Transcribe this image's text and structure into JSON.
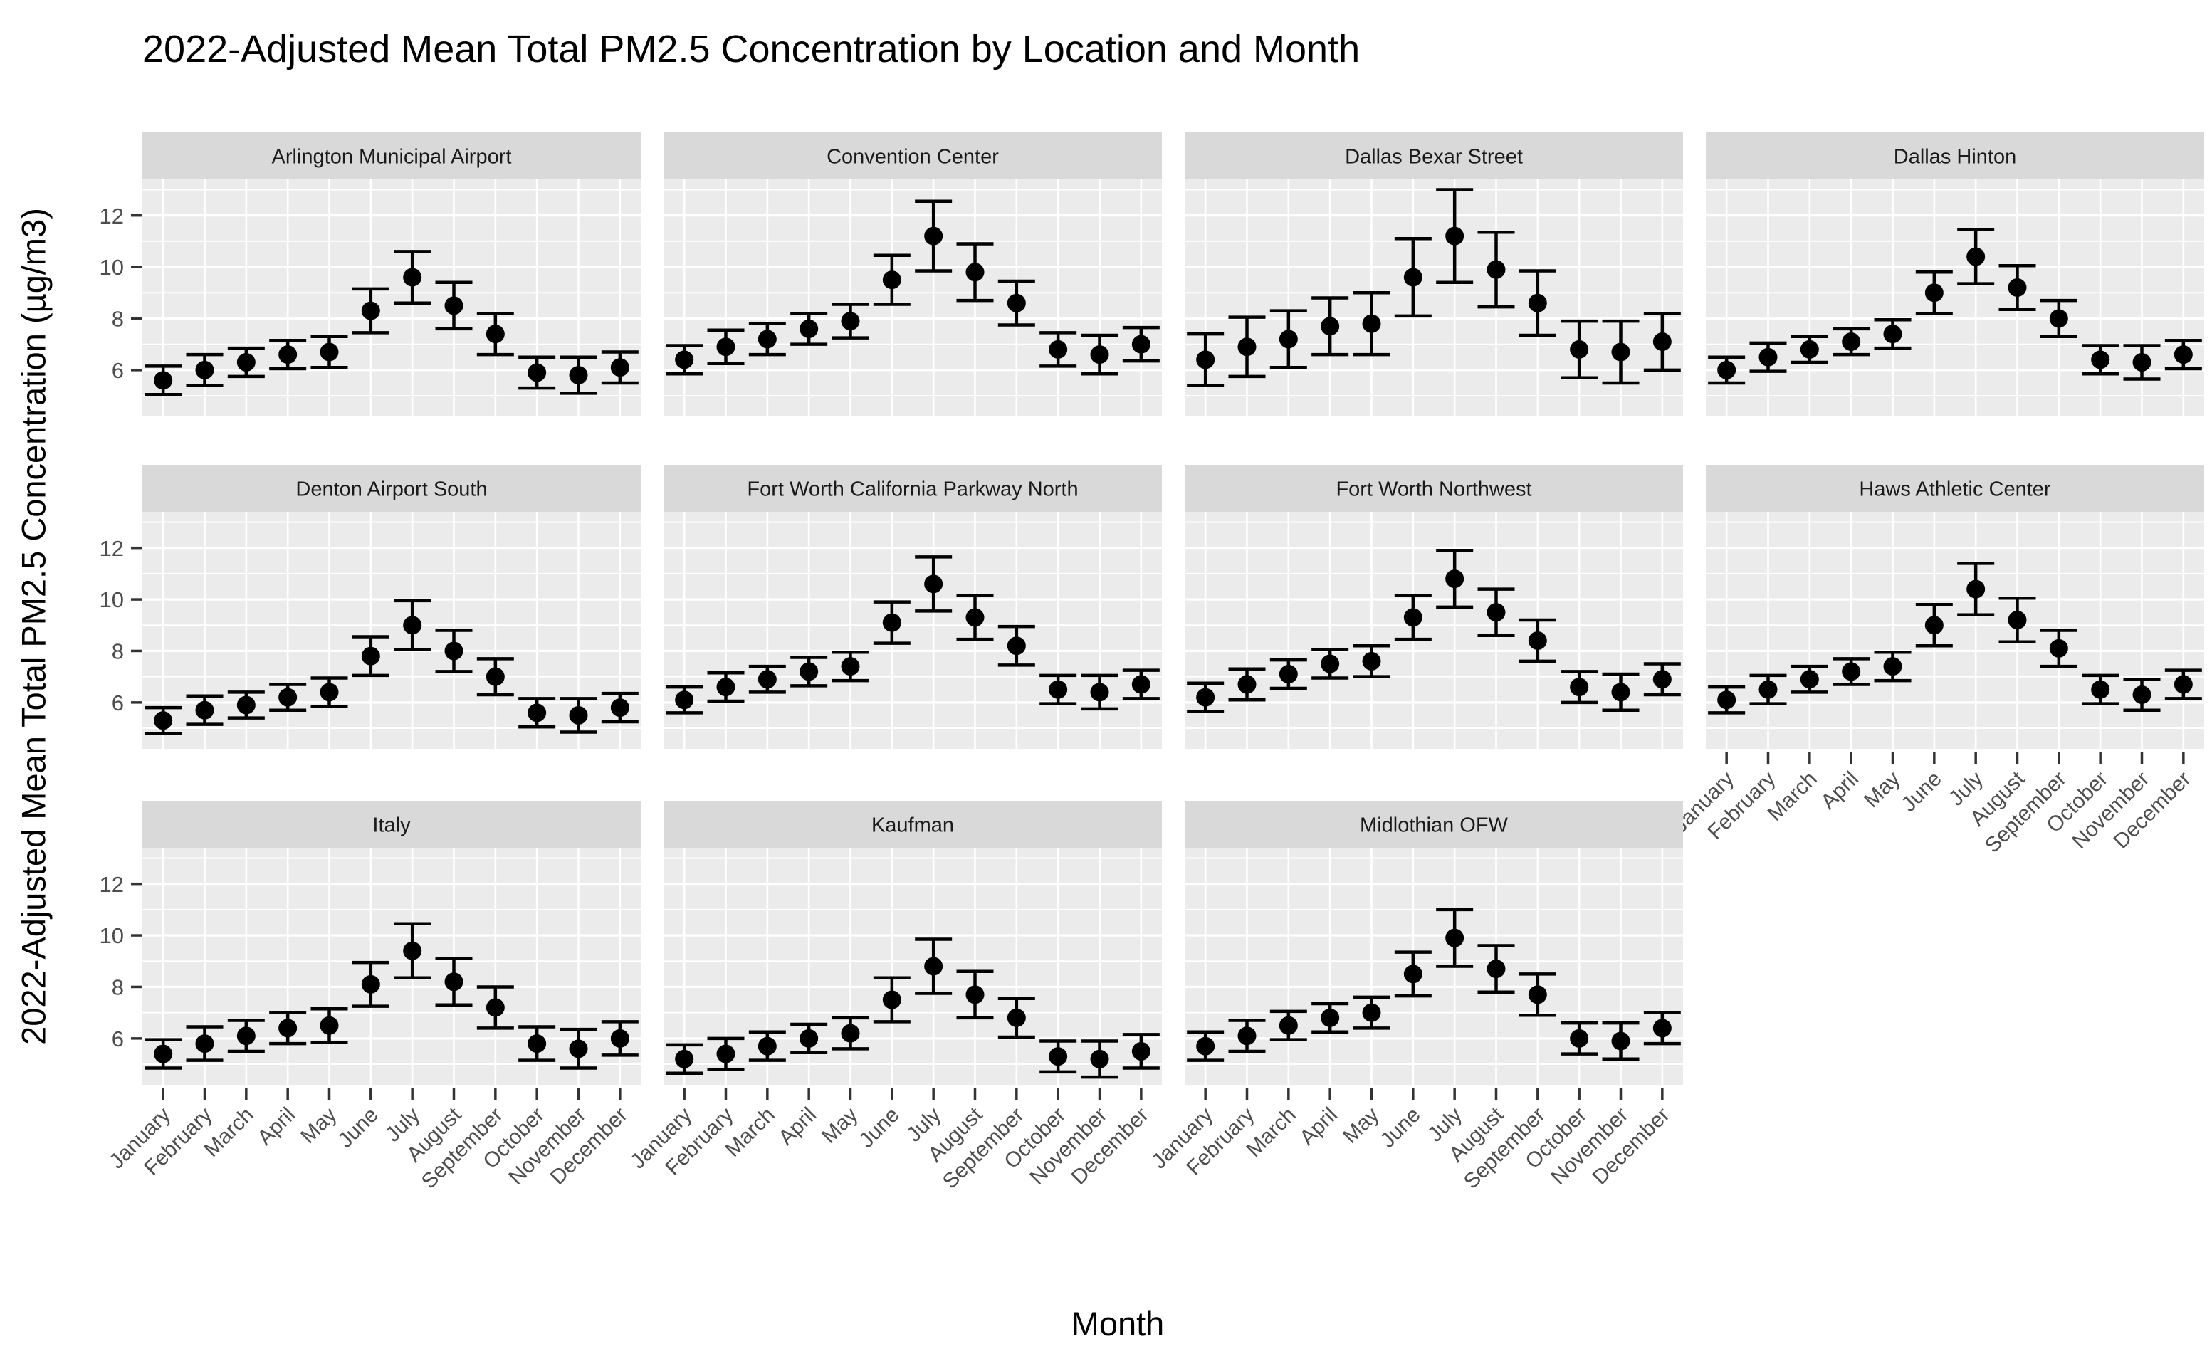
{
  "title": "2022-Adjusted Mean Total PM2.5 Concentration by Location and Month",
  "y_axis_title": "2022-Adjusted Mean Total PM2.5 Concentration (µg/m3)",
  "x_axis_title": "Month",
  "colors": {
    "background": "#FFFFFF",
    "panel_background": "#EBEBEB",
    "strip_background": "#D9D9D9",
    "strip_text": "#1A1A1A",
    "gridline": "#FFFFFF",
    "geom": "#000000",
    "axis_text": "#4D4D4D",
    "tick_mark": "#333333"
  },
  "chart_data": {
    "type": "scatter",
    "subtype": "pointrange-with-errorbars",
    "title": "2022-Adjusted Mean Total PM2.5 Concentration by Location and Month",
    "xlabel": "Month",
    "ylabel": "2022-Adjusted Mean Total PM2.5 Concentration (µg/m3)",
    "categories": [
      "January",
      "February",
      "March",
      "April",
      "May",
      "June",
      "July",
      "August",
      "September",
      "October",
      "November",
      "December"
    ],
    "y_ticks": [
      6,
      8,
      10,
      12
    ],
    "ylim": [
      4.2,
      13.4
    ],
    "grid": "white major/minor gridlines on grey panels",
    "legend": "none",
    "facet_columns": 4,
    "facets": [
      {
        "label": "Arlington Municipal Airport",
        "means": [
          5.6,
          6.0,
          6.3,
          6.6,
          6.7,
          8.3,
          9.6,
          8.5,
          7.4,
          5.9,
          5.8,
          6.1
        ],
        "errors": [
          0.55,
          0.6,
          0.55,
          0.55,
          0.6,
          0.85,
          1.0,
          0.9,
          0.8,
          0.6,
          0.7,
          0.6
        ]
      },
      {
        "label": "Convention Center",
        "means": [
          6.4,
          6.9,
          7.2,
          7.6,
          7.9,
          9.5,
          11.2,
          9.8,
          8.6,
          6.8,
          6.6,
          7.0
        ],
        "errors": [
          0.55,
          0.65,
          0.6,
          0.6,
          0.65,
          0.95,
          1.35,
          1.1,
          0.85,
          0.65,
          0.75,
          0.65
        ]
      },
      {
        "label": "Dallas Bexar Street",
        "means": [
          6.4,
          6.9,
          7.2,
          7.7,
          7.8,
          9.6,
          11.2,
          9.9,
          8.6,
          6.8,
          6.7,
          7.1
        ],
        "errors": [
          1.0,
          1.15,
          1.1,
          1.1,
          1.2,
          1.5,
          1.8,
          1.45,
          1.25,
          1.1,
          1.2,
          1.1
        ]
      },
      {
        "label": "Dallas Hinton",
        "means": [
          6.0,
          6.5,
          6.8,
          7.1,
          7.4,
          9.0,
          10.4,
          9.2,
          8.0,
          6.4,
          6.3,
          6.6
        ],
        "errors": [
          0.5,
          0.55,
          0.5,
          0.5,
          0.55,
          0.8,
          1.05,
          0.85,
          0.7,
          0.55,
          0.65,
          0.55
        ]
      },
      {
        "label": "Denton Airport South",
        "means": [
          5.3,
          5.7,
          5.9,
          6.2,
          6.4,
          7.8,
          9.0,
          8.0,
          7.0,
          5.6,
          5.5,
          5.8
        ],
        "errors": [
          0.5,
          0.55,
          0.5,
          0.5,
          0.55,
          0.75,
          0.95,
          0.8,
          0.7,
          0.55,
          0.65,
          0.55
        ]
      },
      {
        "label": "Fort Worth California Parkway North",
        "means": [
          6.1,
          6.6,
          6.9,
          7.2,
          7.4,
          9.1,
          10.6,
          9.3,
          8.2,
          6.5,
          6.4,
          6.7
        ],
        "errors": [
          0.5,
          0.55,
          0.5,
          0.55,
          0.55,
          0.8,
          1.05,
          0.85,
          0.75,
          0.55,
          0.65,
          0.55
        ]
      },
      {
        "label": "Fort Worth Northwest",
        "means": [
          6.2,
          6.7,
          7.1,
          7.5,
          7.6,
          9.3,
          10.8,
          9.5,
          8.4,
          6.6,
          6.4,
          6.9
        ],
        "errors": [
          0.55,
          0.6,
          0.55,
          0.55,
          0.6,
          0.85,
          1.1,
          0.9,
          0.8,
          0.6,
          0.7,
          0.6
        ]
      },
      {
        "label": "Haws Athletic Center",
        "means": [
          6.1,
          6.5,
          6.9,
          7.2,
          7.4,
          9.0,
          10.4,
          9.2,
          8.1,
          6.5,
          6.3,
          6.7
        ],
        "errors": [
          0.5,
          0.55,
          0.5,
          0.5,
          0.55,
          0.8,
          1.0,
          0.85,
          0.7,
          0.55,
          0.6,
          0.55
        ]
      },
      {
        "label": "Italy",
        "means": [
          5.4,
          5.8,
          6.1,
          6.4,
          6.5,
          8.1,
          9.4,
          8.2,
          7.2,
          5.8,
          5.6,
          6.0
        ],
        "errors": [
          0.55,
          0.65,
          0.6,
          0.6,
          0.65,
          0.85,
          1.05,
          0.9,
          0.8,
          0.65,
          0.75,
          0.65
        ]
      },
      {
        "label": "Kaufman",
        "means": [
          5.2,
          5.4,
          5.7,
          6.0,
          6.2,
          7.5,
          8.8,
          7.7,
          6.8,
          5.3,
          5.2,
          5.5
        ],
        "errors": [
          0.55,
          0.6,
          0.55,
          0.55,
          0.6,
          0.85,
          1.05,
          0.9,
          0.75,
          0.6,
          0.7,
          0.65
        ]
      },
      {
        "label": "Midlothian OFW",
        "means": [
          5.7,
          6.1,
          6.5,
          6.8,
          7.0,
          8.5,
          9.9,
          8.7,
          7.7,
          6.0,
          5.9,
          6.4
        ],
        "errors": [
          0.55,
          0.6,
          0.55,
          0.55,
          0.6,
          0.85,
          1.1,
          0.9,
          0.8,
          0.6,
          0.7,
          0.6
        ]
      }
    ]
  }
}
